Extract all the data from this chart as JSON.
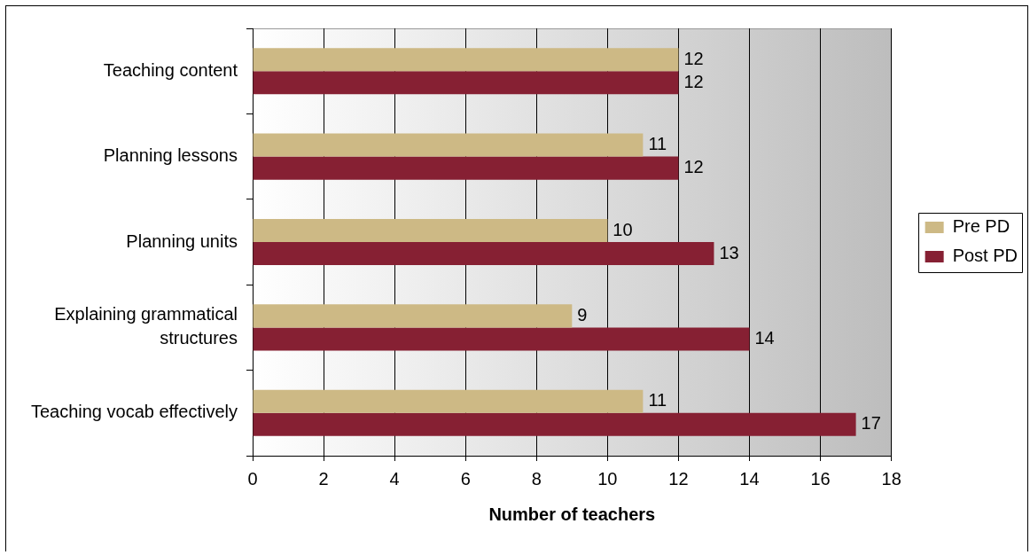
{
  "chart_data": {
    "type": "bar",
    "orientation": "horizontal",
    "categories": [
      "Teaching content",
      "Planning lessons",
      "Planning units",
      "Explaining grammatical structures",
      "Teaching vocab effectively"
    ],
    "series": [
      {
        "name": "Pre PD",
        "color": "#cdb985",
        "values": [
          12,
          11,
          10,
          9,
          11
        ]
      },
      {
        "name": "Post PD",
        "color": "#862033",
        "values": [
          12,
          12,
          13,
          14,
          17
        ]
      }
    ],
    "xlabel": "Number of teachers",
    "xlim": [
      0,
      18
    ],
    "xticks": [
      0,
      2,
      4,
      6,
      8,
      10,
      12,
      14,
      16,
      18
    ],
    "grid": "x",
    "legend": "right",
    "data_labels": true
  }
}
